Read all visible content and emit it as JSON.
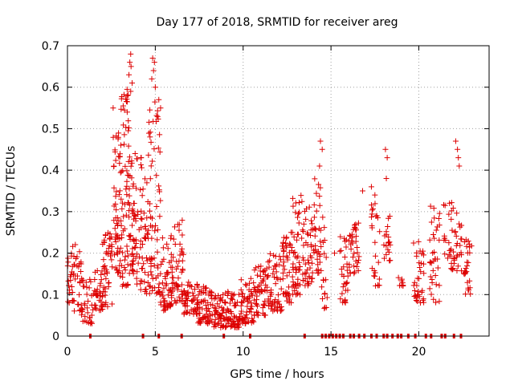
{
  "chart_data": {
    "type": "scatter",
    "title": "Day 177 of 2018, SRMTID for receiver areg",
    "xlabel": "GPS time / hours",
    "ylabel": "SRMTID / TECUs",
    "xlim": [
      0,
      24
    ],
    "ylim": [
      0,
      0.7
    ],
    "x_ticks": [
      0,
      5,
      10,
      15,
      20
    ],
    "x_tick_labels": [
      "0",
      "5",
      "10",
      "15",
      "20"
    ],
    "y_ticks": [
      0,
      0.1,
      0.2,
      0.3,
      0.4,
      0.5,
      0.6,
      0.7
    ],
    "y_tick_labels": [
      "0",
      "0.1",
      "0.2",
      "0.3",
      "0.4",
      "0.5",
      "0.6",
      "0.7"
    ],
    "grid": true,
    "marker_color": "#dd0000",
    "series": [
      {
        "name": "SRMTID",
        "marker": "plus",
        "clusters": [
          {
            "x_range": [
              0.0,
              0.3
            ],
            "y_range": [
              0.08,
              0.2
            ],
            "count": 20
          },
          {
            "x_range": [
              0.3,
              0.8
            ],
            "y_range": [
              0.06,
              0.25
            ],
            "count": 30
          },
          {
            "x_range": [
              0.8,
              1.4
            ],
            "y_range": [
              0.03,
              0.14
            ],
            "count": 35
          },
          {
            "x_range": [
              1.4,
              2.0
            ],
            "y_range": [
              0.06,
              0.16
            ],
            "count": 35
          },
          {
            "x_range": [
              2.0,
              2.6
            ],
            "y_range": [
              0.07,
              0.25
            ],
            "count": 45
          },
          {
            "x_range": [
              2.6,
              3.0
            ],
            "y_range": [
              0.15,
              0.5
            ],
            "count": 50
          },
          {
            "x_range": [
              3.0,
              3.5
            ],
            "y_range": [
              0.12,
              0.6
            ],
            "count": 70
          },
          {
            "x_range": [
              3.5,
              3.9
            ],
            "y_range": [
              0.15,
              0.44
            ],
            "count": 50
          },
          {
            "x_range": [
              3.9,
              4.6
            ],
            "y_range": [
              0.1,
              0.44
            ],
            "count": 60
          },
          {
            "x_range": [
              4.6,
              5.3
            ],
            "y_range": [
              0.1,
              0.58
            ],
            "count": 70
          },
          {
            "x_range": [
              5.3,
              6.0
            ],
            "y_range": [
              0.06,
              0.25
            ],
            "count": 60
          },
          {
            "x_range": [
              6.0,
              6.6
            ],
            "y_range": [
              0.08,
              0.28
            ],
            "count": 45
          },
          {
            "x_range": [
              6.6,
              7.4
            ],
            "y_range": [
              0.05,
              0.13
            ],
            "count": 50
          },
          {
            "x_range": [
              7.4,
              8.2
            ],
            "y_range": [
              0.03,
              0.12
            ],
            "count": 60
          },
          {
            "x_range": [
              8.2,
              9.0
            ],
            "y_range": [
              0.02,
              0.1
            ],
            "count": 55
          },
          {
            "x_range": [
              9.0,
              9.8
            ],
            "y_range": [
              0.02,
              0.11
            ],
            "count": 60
          },
          {
            "x_range": [
              9.8,
              10.6
            ],
            "y_range": [
              0.03,
              0.14
            ],
            "count": 60
          },
          {
            "x_range": [
              10.6,
              11.4
            ],
            "y_range": [
              0.05,
              0.17
            ],
            "count": 55
          },
          {
            "x_range": [
              11.4,
              12.2
            ],
            "y_range": [
              0.06,
              0.2
            ],
            "count": 55
          },
          {
            "x_range": [
              12.2,
              12.8
            ],
            "y_range": [
              0.08,
              0.25
            ],
            "count": 45
          },
          {
            "x_range": [
              12.8,
              13.4
            ],
            "y_range": [
              0.1,
              0.34
            ],
            "count": 50
          },
          {
            "x_range": [
              13.4,
              14.0
            ],
            "y_range": [
              0.12,
              0.32
            ],
            "count": 45
          },
          {
            "x_range": [
              14.0,
              14.4
            ],
            "y_range": [
              0.15,
              0.4
            ],
            "count": 30
          },
          {
            "x_range": [
              14.4,
              14.8
            ],
            "y_range": [
              0.06,
              0.3
            ],
            "count": 20
          },
          {
            "x_range": [
              15.5,
              16.0
            ],
            "y_range": [
              0.08,
              0.24
            ],
            "count": 30
          },
          {
            "x_range": [
              16.0,
              16.6
            ],
            "y_range": [
              0.15,
              0.28
            ],
            "count": 35
          },
          {
            "x_range": [
              17.3,
              17.8
            ],
            "y_range": [
              0.12,
              0.33
            ],
            "count": 25
          },
          {
            "x_range": [
              18.0,
              18.4
            ],
            "y_range": [
              0.18,
              0.3
            ],
            "count": 20
          },
          {
            "x_range": [
              18.8,
              19.1
            ],
            "y_range": [
              0.12,
              0.16
            ],
            "count": 8
          },
          {
            "x_range": [
              19.7,
              20.3
            ],
            "y_range": [
              0.08,
              0.23
            ],
            "count": 35
          },
          {
            "x_range": [
              20.6,
              21.2
            ],
            "y_range": [
              0.08,
              0.32
            ],
            "count": 35
          },
          {
            "x_range": [
              21.4,
              22.0
            ],
            "y_range": [
              0.16,
              0.33
            ],
            "count": 30
          },
          {
            "x_range": [
              22.0,
              22.6
            ],
            "y_range": [
              0.15,
              0.3
            ],
            "count": 25
          },
          {
            "x_range": [
              22.6,
              23.0
            ],
            "y_range": [
              0.1,
              0.24
            ],
            "count": 25
          }
        ],
        "extreme_points": [
          {
            "x": 3.6,
            "y": 0.68
          },
          {
            "x": 3.55,
            "y": 0.66
          },
          {
            "x": 3.62,
            "y": 0.65
          },
          {
            "x": 3.5,
            "y": 0.63
          },
          {
            "x": 3.68,
            "y": 0.61
          },
          {
            "x": 3.6,
            "y": 0.59
          },
          {
            "x": 4.85,
            "y": 0.67
          },
          {
            "x": 4.95,
            "y": 0.66
          },
          {
            "x": 4.9,
            "y": 0.64
          },
          {
            "x": 4.8,
            "y": 0.62
          },
          {
            "x": 5.0,
            "y": 0.6
          },
          {
            "x": 2.6,
            "y": 0.55
          },
          {
            "x": 3.4,
            "y": 0.54
          },
          {
            "x": 5.2,
            "y": 0.57
          },
          {
            "x": 5.3,
            "y": 0.55
          },
          {
            "x": 4.7,
            "y": 0.48
          },
          {
            "x": 4.2,
            "y": 0.43
          },
          {
            "x": 14.4,
            "y": 0.47
          },
          {
            "x": 14.5,
            "y": 0.45
          },
          {
            "x": 14.35,
            "y": 0.41
          },
          {
            "x": 18.1,
            "y": 0.45
          },
          {
            "x": 18.2,
            "y": 0.43
          },
          {
            "x": 18.15,
            "y": 0.38
          },
          {
            "x": 22.1,
            "y": 0.47
          },
          {
            "x": 22.2,
            "y": 0.45
          },
          {
            "x": 22.25,
            "y": 0.43
          },
          {
            "x": 22.3,
            "y": 0.41
          },
          {
            "x": 16.8,
            "y": 0.35
          },
          {
            "x": 17.5,
            "y": 0.34
          },
          {
            "x": 15.2,
            "y": 0.2
          },
          {
            "x": 16.4,
            "y": 0.26
          },
          {
            "x": 17.3,
            "y": 0.36
          }
        ],
        "zero_markers_x": [
          1.3,
          4.3,
          5.2,
          6.5,
          8.9,
          10.4,
          13.5,
          14.5,
          14.7,
          14.9,
          15.1,
          15.3,
          15.5,
          15.7,
          16.1,
          16.3,
          16.6,
          16.9,
          17.3,
          17.6,
          18.0,
          18.2,
          18.5,
          18.8,
          19.0,
          19.4,
          19.8,
          20.4,
          20.7,
          21.3,
          21.5,
          22.0,
          22.4
        ]
      }
    ]
  }
}
